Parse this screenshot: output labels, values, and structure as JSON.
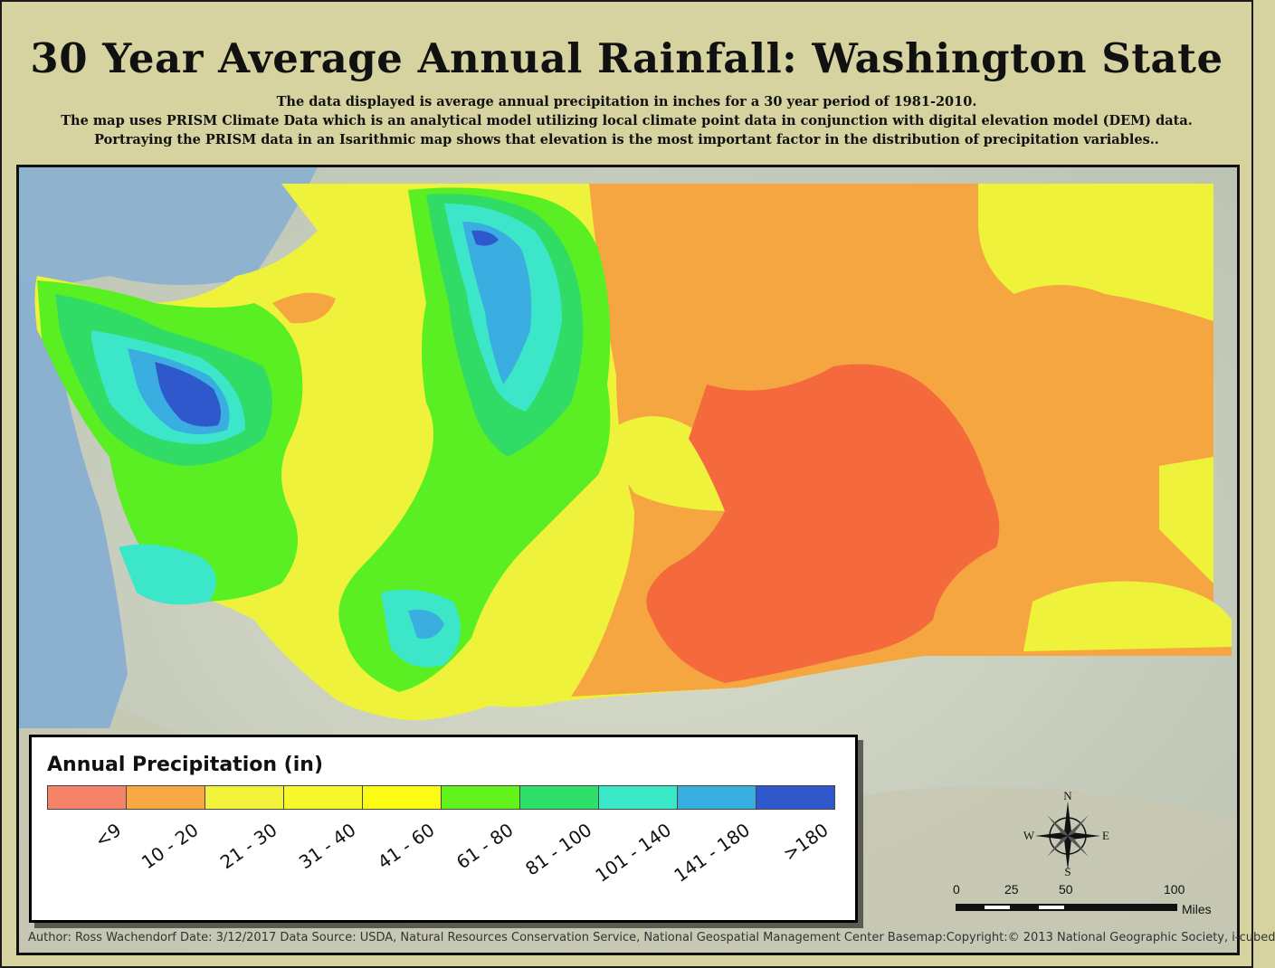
{
  "title": "30 Year Average Annual Rainfall: Washington State",
  "description": [
    "The data displayed is average annual precipitation in inches for a 30 year period of 1981-2010.",
    "The map uses PRISM Climate Data which is an analytical model utilizing local climate point data in conjunction with digital elevation model (DEM) data.",
    "Portraying the PRISM data in an Isarithmic map shows that elevation is the most important factor in the distribution of precipitation variables.."
  ],
  "legend": {
    "title": "Annual Precipitation (in)",
    "classes": [
      {
        "label": "<9",
        "color": "#f7826a"
      },
      {
        "label": "10 - 20",
        "color": "#f7a845"
      },
      {
        "label": "21 - 30",
        "color": "#f2f23a"
      },
      {
        "label": "31 - 40",
        "color": "#f7f72a"
      },
      {
        "label": "41 - 60",
        "color": "#fbfb14"
      },
      {
        "label": "61 - 80",
        "color": "#62f21c"
      },
      {
        "label": "81 - 100",
        "color": "#2ee06a"
      },
      {
        "label": "101 - 140",
        "color": "#3ae8c8"
      },
      {
        "label": "141 - 180",
        "color": "#38aee0"
      },
      {
        "label": ">180",
        "color": "#2f58cc"
      }
    ]
  },
  "compass": {
    "n": "N",
    "s": "S",
    "e": "E",
    "w": "W"
  },
  "scale": {
    "ticks": [
      "0",
      "25",
      "50",
      "100"
    ],
    "unit": "Miles"
  },
  "footer": "Author: Ross Wachendorf  Date: 3/12/2017  Data Source: USDA, Natural Resources Conservation Service, National Geospatial Management Center  Basemap:Copyright:© 2013 National Geographic Society, i-cubed"
}
